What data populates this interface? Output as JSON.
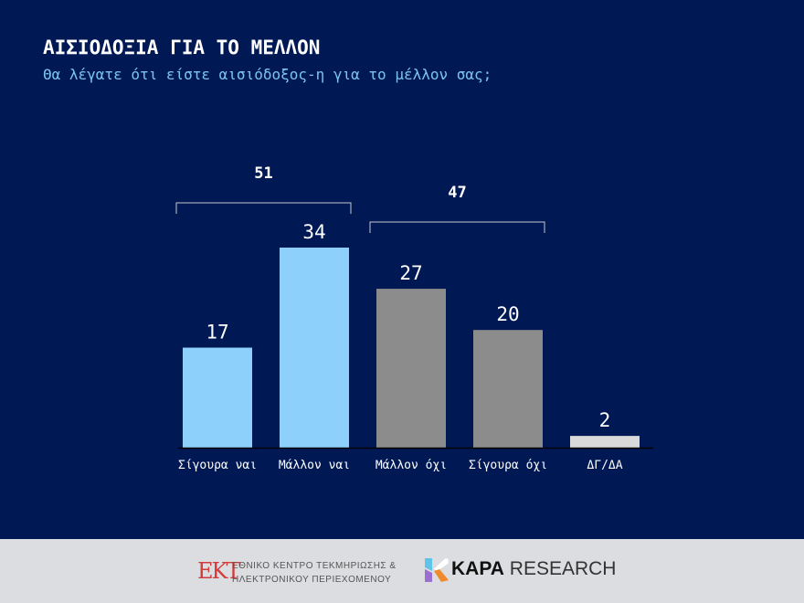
{
  "header": {
    "title": "ΑΙΣΙΟΔΟΞΙΑ ΓΙΑ ΤΟ ΜΕΛΛΟΝ",
    "subtitle": "Θα λέγατε ότι είστε αισιόδοξος-η για το μέλλον σας;"
  },
  "chart_data": {
    "type": "bar",
    "categories": [
      "Σίγουρα ναι",
      "Μάλλον ναι",
      "Μάλλον όχι",
      "Σίγουρα όχι",
      "ΔΓ/ΔΑ"
    ],
    "values": [
      17,
      34,
      27,
      20,
      2
    ],
    "colors": [
      "#8dd0fb",
      "#8dd0fb",
      "#8c8c8c",
      "#8c8c8c",
      "#d9d9d9"
    ],
    "groups": [
      {
        "label": "51",
        "from": 0,
        "to": 1
      },
      {
        "label": "47",
        "from": 2,
        "to": 3
      }
    ],
    "ylim": [
      0,
      34
    ]
  },
  "footer": {
    "ekt_logo": "ΕΚΤ",
    "ekt_line1": "ΕΘΝΙΚΟ ΚΕΝΤΡΟ ΤΕΚΜΗΡΙΩΣΗΣ &",
    "ekt_line2": "ΗΛΕΚΤΡΟΝΙΚΟΥ ΠΕΡΙΕΧΟΜΕΝΟΥ",
    "kapa_bold": "KAPA",
    "kapa_rest": " RESEARCH"
  }
}
